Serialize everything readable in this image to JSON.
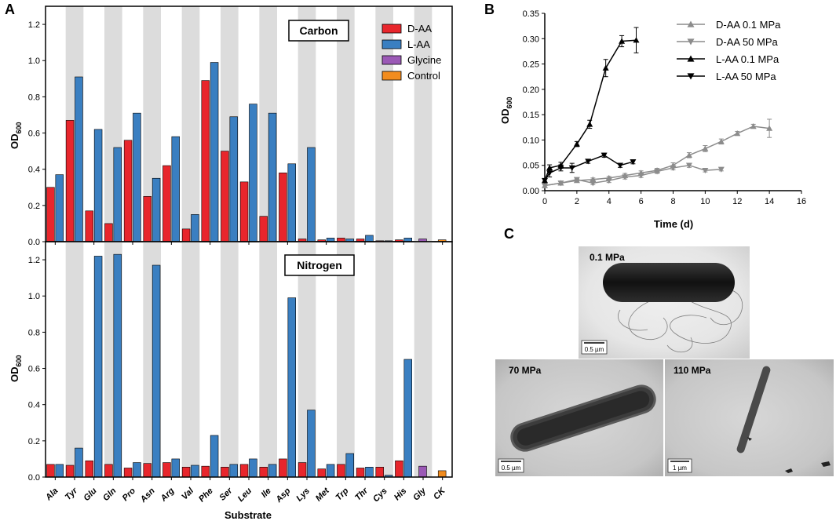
{
  "panels": {
    "A": "A",
    "B": "B",
    "C": "C"
  },
  "chart_data": [
    {
      "id": "A-carbon",
      "type": "bar",
      "title": "Carbon",
      "ylabel": "OD600",
      "ylabel_main": "OD",
      "ylabel_sub": "600",
      "ylim": [
        0,
        1.3
      ],
      "yticks": [
        0.0,
        0.2,
        0.4,
        0.6,
        0.8,
        1.0,
        1.2
      ],
      "categories": [
        "Ala",
        "Tyr",
        "Glu",
        "Gln",
        "Pro",
        "Asn",
        "Arg",
        "Val",
        "Phe",
        "Ser",
        "Leu",
        "Ile",
        "Asp",
        "Lys",
        "Met",
        "Trp",
        "Thr",
        "Cys",
        "His",
        "Gly",
        "CK"
      ],
      "legend": [
        "D-AA",
        "L-AA",
        "Glycine",
        "Control"
      ],
      "colors": {
        "D-AA": "#e8262c",
        "L-AA": "#3a7fc1",
        "Glycine": "#9b59b6",
        "Control": "#f28c1e"
      },
      "series": [
        {
          "name": "D-AA",
          "values": [
            0.3,
            0.67,
            0.17,
            0.1,
            0.56,
            0.25,
            0.42,
            0.07,
            0.89,
            0.5,
            0.33,
            0.14,
            0.38,
            0.015,
            0.01,
            0.02,
            0.015,
            0.005,
            0.01,
            null,
            null
          ]
        },
        {
          "name": "L-AA",
          "values": [
            0.37,
            0.91,
            0.62,
            0.52,
            0.71,
            0.35,
            0.58,
            0.15,
            0.99,
            0.69,
            0.76,
            0.71,
            0.43,
            0.52,
            0.02,
            0.015,
            0.035,
            0.005,
            0.02,
            null,
            null
          ]
        },
        {
          "name": "Glycine",
          "values": [
            null,
            null,
            null,
            null,
            null,
            null,
            null,
            null,
            null,
            null,
            null,
            null,
            null,
            null,
            null,
            null,
            null,
            null,
            null,
            0.015,
            null
          ]
        },
        {
          "name": "Control",
          "values": [
            null,
            null,
            null,
            null,
            null,
            null,
            null,
            null,
            null,
            null,
            null,
            null,
            null,
            null,
            null,
            null,
            null,
            null,
            null,
            null,
            0.01
          ]
        }
      ]
    },
    {
      "id": "A-nitrogen",
      "type": "bar",
      "title": "Nitrogen",
      "ylabel": "OD600",
      "ylabel_main": "OD",
      "ylabel_sub": "600",
      "xlabel": "Substrate",
      "ylim": [
        0,
        1.3
      ],
      "yticks": [
        0.0,
        0.2,
        0.4,
        0.6,
        0.8,
        1.0,
        1.2
      ],
      "categories": [
        "Ala",
        "Tyr",
        "Glu",
        "Gln",
        "Pro",
        "Asn",
        "Arg",
        "Val",
        "Phe",
        "Ser",
        "Leu",
        "Ile",
        "Asp",
        "Lys",
        "Met",
        "Trp",
        "Thr",
        "Cys",
        "His",
        "Gly",
        "CK"
      ],
      "series": [
        {
          "name": "D-AA",
          "values": [
            0.07,
            0.065,
            0.09,
            0.07,
            0.05,
            0.075,
            0.08,
            0.055,
            0.06,
            0.055,
            0.07,
            0.055,
            0.1,
            0.08,
            0.045,
            0.07,
            0.05,
            0.055,
            0.09,
            null,
            null
          ]
        },
        {
          "name": "L-AA",
          "values": [
            0.07,
            0.16,
            1.22,
            1.23,
            0.08,
            1.17,
            0.1,
            0.065,
            0.23,
            0.07,
            0.1,
            0.07,
            0.99,
            0.37,
            0.07,
            0.13,
            0.055,
            0.01,
            0.65,
            null,
            null
          ]
        },
        {
          "name": "Glycine",
          "values": [
            null,
            null,
            null,
            null,
            null,
            null,
            null,
            null,
            null,
            null,
            null,
            null,
            null,
            null,
            null,
            null,
            null,
            null,
            null,
            0.06,
            null
          ]
        },
        {
          "name": "Control",
          "values": [
            null,
            null,
            null,
            null,
            null,
            null,
            null,
            null,
            null,
            null,
            null,
            null,
            null,
            null,
            null,
            null,
            null,
            null,
            null,
            null,
            0.035
          ]
        }
      ]
    },
    {
      "id": "B",
      "type": "line",
      "xlabel": "Time (d)",
      "ylabel": "OD600",
      "ylabel_main": "OD",
      "ylabel_sub": "600",
      "xlim": [
        0,
        16
      ],
      "ylim": [
        0,
        0.35
      ],
      "xticks": [
        0,
        2,
        4,
        6,
        8,
        10,
        12,
        14,
        16
      ],
      "yticks": [
        0.0,
        0.05,
        0.1,
        0.15,
        0.2,
        0.25,
        0.3,
        0.35
      ],
      "series": [
        {
          "name": "D-AA 0.1 MPa",
          "color": "#8c8c8c",
          "marker": "triangle-up",
          "x": [
            0,
            1,
            2,
            3,
            4,
            5,
            6,
            7,
            8,
            9,
            10,
            11,
            12,
            13,
            14
          ],
          "y": [
            0.01,
            0.015,
            0.02,
            0.022,
            0.025,
            0.03,
            0.035,
            0.04,
            0.05,
            0.07,
            0.083,
            0.097,
            0.113,
            0.127,
            0.123
          ],
          "err": [
            0.003,
            0.003,
            0.003,
            0.003,
            0.003,
            0.004,
            0.004,
            0.004,
            0.005,
            0.005,
            0.006,
            0.005,
            0.004,
            0.004,
            0.018
          ]
        },
        {
          "name": "D-AA 50 MPa",
          "color": "#8c8c8c",
          "marker": "triangle-down",
          "x": [
            0,
            1,
            2,
            3,
            4,
            5,
            6,
            7,
            8,
            9,
            10,
            11
          ],
          "y": [
            0.01,
            0.015,
            0.022,
            0.015,
            0.02,
            0.027,
            0.03,
            0.038,
            0.045,
            0.05,
            0.04,
            0.042
          ],
          "err": [
            0.003,
            0.003,
            0.003,
            0.003,
            0.004,
            0.004,
            0.004,
            0.004,
            0.004,
            0.004,
            0.003,
            0.003
          ]
        },
        {
          "name": "L-AA 0.1 MPa",
          "color": "#000000",
          "marker": "triangle-up",
          "x": [
            0,
            0.3,
            1,
            2,
            2.8,
            3.8,
            4.8,
            5.7
          ],
          "y": [
            0.02,
            0.045,
            0.05,
            0.092,
            0.131,
            0.242,
            0.295,
            0.297
          ],
          "err": [
            0.004,
            0.006,
            0.006,
            0.005,
            0.008,
            0.017,
            0.011,
            0.025
          ]
        },
        {
          "name": "L-AA 50 MPa",
          "color": "#000000",
          "marker": "triangle-down",
          "x": [
            0,
            0.3,
            1,
            1.7,
            2.7,
            3.7,
            4.7,
            5.5
          ],
          "y": [
            0.02,
            0.035,
            0.045,
            0.045,
            0.058,
            0.07,
            0.05,
            0.057
          ],
          "err": [
            0.004,
            0.008,
            0.006,
            0.009,
            0.004,
            0.004,
            0.004,
            0.004
          ]
        }
      ]
    }
  ],
  "panelC": {
    "images": [
      {
        "label": "0.1 MPa",
        "scale": "0.5 µm"
      },
      {
        "label": "70 MPa",
        "scale": "0.5 µm"
      },
      {
        "label": "110 MPa",
        "scale": "1 µm"
      }
    ]
  }
}
